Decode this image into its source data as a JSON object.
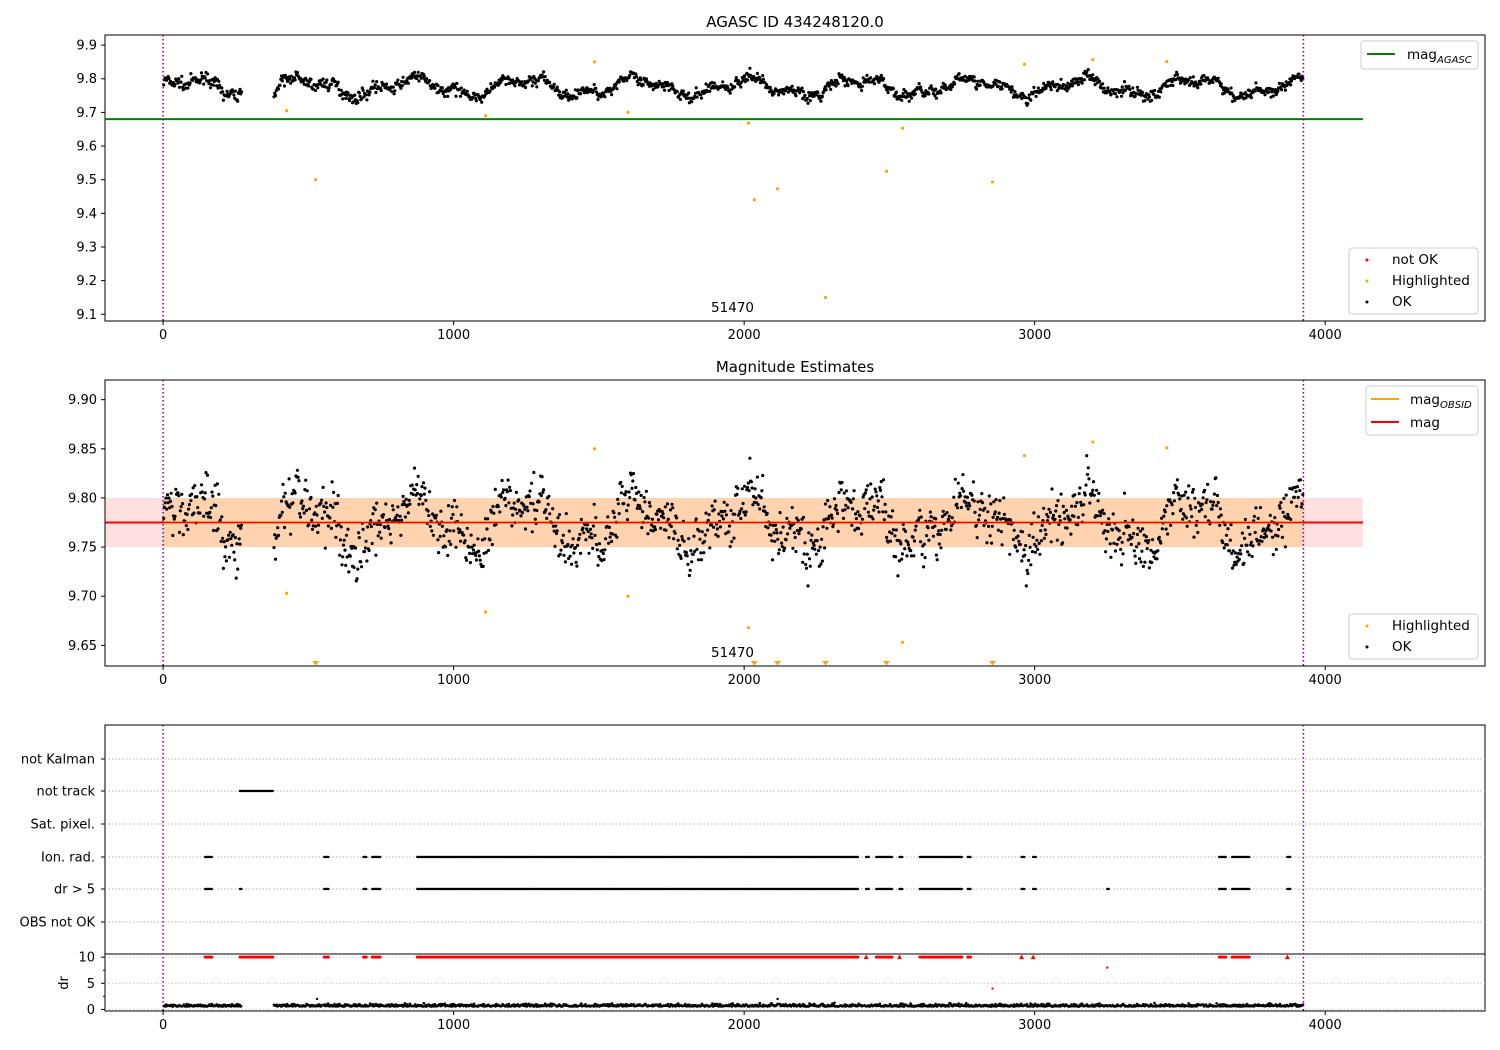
{
  "figure": {
    "title": "AGASC ID 434248120.0",
    "xlim": [
      -200,
      4550
    ],
    "x_ticks": [
      0,
      1000,
      2000,
      3000,
      4000
    ],
    "x_tick_labels": [
      "0",
      "1000",
      "2000",
      "3000",
      "4000"
    ],
    "obs_boundaries": [
      0,
      3925
    ],
    "obs_label": "51470",
    "obs_label_x": 1960
  },
  "chart_data": [
    {
      "type": "scatter",
      "title": "AGASC ID 434248120.0",
      "xlim": [
        -200,
        4550
      ],
      "ylim": [
        9.08,
        9.93
      ],
      "y_ticks": [
        9.1,
        9.2,
        9.3,
        9.4,
        9.5,
        9.6,
        9.7,
        9.8,
        9.9
      ],
      "y_tick_labels": [
        "9.1",
        "9.2",
        "9.3",
        "9.4",
        "9.5",
        "9.6",
        "9.7",
        "9.8",
        "9.9"
      ],
      "mag_agasc": 9.68,
      "mag_agasc_xrange": [
        -200,
        4130
      ],
      "legend_position": "upper right / lower right",
      "legend_line": [
        {
          "label": "mag",
          "sub": "AGASC",
          "color": "#008000"
        }
      ],
      "legend_points": [
        {
          "label": "not OK",
          "color": "#ff0000"
        },
        {
          "label": "Highlighted",
          "color": "#ffa500"
        },
        {
          "label": "OK",
          "color": "#000000"
        }
      ],
      "ok_points_description": "dense band of OK points, mag ~9.72–9.84 over x 0–3925, gap 270–380",
      "highlighted_points": [
        {
          "x": 425,
          "y": 9.705
        },
        {
          "x": 525,
          "y": 9.5
        },
        {
          "x": 1110,
          "y": 9.69
        },
        {
          "x": 1485,
          "y": 9.85
        },
        {
          "x": 1600,
          "y": 9.7
        },
        {
          "x": 2015,
          "y": 9.668
        },
        {
          "x": 2035,
          "y": 9.44
        },
        {
          "x": 2115,
          "y": 9.473
        },
        {
          "x": 2280,
          "y": 9.15
        },
        {
          "x": 2490,
          "y": 9.525
        },
        {
          "x": 2545,
          "y": 9.653
        },
        {
          "x": 2855,
          "y": 9.493
        },
        {
          "x": 2965,
          "y": 9.843
        },
        {
          "x": 3200,
          "y": 9.857
        },
        {
          "x": 3455,
          "y": 9.851
        }
      ]
    },
    {
      "type": "scatter",
      "title": "Magnitude Estimates",
      "xlim": [
        -200,
        4550
      ],
      "ylim": [
        9.629,
        9.92
      ],
      "y_ticks": [
        9.65,
        9.7,
        9.75,
        9.8,
        9.85,
        9.9
      ],
      "y_tick_labels": [
        "9.65",
        "9.70",
        "9.75",
        "9.80",
        "9.85",
        "9.90"
      ],
      "mag": 9.775,
      "mag_band": [
        9.75,
        9.8
      ],
      "mag_xrange": [
        -200,
        4130
      ],
      "mag_obsid": 9.775,
      "mag_obsid_xrange": [
        0,
        3925
      ],
      "legend_lines": [
        {
          "label": "mag",
          "sub": "OBSID",
          "color": "#ffa500"
        },
        {
          "label": "mag",
          "sub": "",
          "color": "#ff0000"
        }
      ],
      "legend_points": [
        {
          "label": "Highlighted",
          "color": "#ffa500"
        },
        {
          "label": "OK",
          "color": "#000000"
        }
      ],
      "highlighted_points": [
        {
          "x": 425,
          "y": 9.703
        },
        {
          "x": 1110,
          "y": 9.684
        },
        {
          "x": 1485,
          "y": 9.85
        },
        {
          "x": 1600,
          "y": 9.7
        },
        {
          "x": 2015,
          "y": 9.668
        },
        {
          "x": 2545,
          "y": 9.653
        },
        {
          "x": 2965,
          "y": 9.843
        },
        {
          "x": 3200,
          "y": 9.857
        },
        {
          "x": 3455,
          "y": 9.851
        }
      ],
      "offscale_low_points_x": [
        525,
        2035,
        2115,
        2280,
        2490,
        2855
      ]
    },
    {
      "type": "scatter",
      "title": "",
      "xlim": [
        -200,
        4550
      ],
      "flag_rows": [
        "not Kalman",
        "not track",
        "Sat. pixel.",
        "Ion. rad.",
        "dr > 5",
        "OBS not OK"
      ],
      "flag_segments": {
        "not Kalman": [],
        "not track": [
          [
            265,
            380
          ]
        ],
        "Sat. pixel.": [],
        "Ion. rad.": [
          [
            145,
            170
          ],
          [
            555,
            570
          ],
          [
            690,
            700
          ],
          [
            720,
            750
          ],
          [
            875,
            2395
          ],
          [
            2420,
            2430
          ],
          [
            2455,
            2510
          ],
          [
            2535,
            2545
          ],
          [
            2605,
            2750
          ],
          [
            2770,
            2780
          ],
          [
            2955,
            2965
          ],
          [
            2995,
            3005
          ],
          [
            3635,
            3660
          ],
          [
            3680,
            3740
          ],
          [
            3870,
            3880
          ]
        ],
        "dr > 5": [
          [
            145,
            170
          ],
          [
            265,
            270
          ],
          [
            555,
            570
          ],
          [
            690,
            700
          ],
          [
            720,
            750
          ],
          [
            875,
            2395
          ],
          [
            2420,
            2430
          ],
          [
            2455,
            2510
          ],
          [
            2535,
            2545
          ],
          [
            2605,
            2750
          ],
          [
            2770,
            2780
          ],
          [
            2955,
            2965
          ],
          [
            2995,
            3005
          ],
          [
            3250,
            3255
          ],
          [
            3635,
            3660
          ],
          [
            3680,
            3740
          ],
          [
            3870,
            3880
          ]
        ],
        "OBS not OK": []
      },
      "dr_ylim": [
        -0.3,
        10.6
      ],
      "dr_ticks": [
        0,
        5,
        10
      ],
      "dr_tick_labels": [
        "0",
        "5",
        "10"
      ],
      "ylabel": "dr",
      "dr_high_segments": [
        [
          145,
          170
        ],
        [
          265,
          380
        ],
        [
          555,
          570
        ],
        [
          690,
          700
        ],
        [
          720,
          750
        ],
        [
          875,
          2395
        ],
        [
          2455,
          2510
        ],
        [
          2605,
          2750
        ],
        [
          2770,
          2780
        ],
        [
          3635,
          3660
        ],
        [
          3680,
          3740
        ]
      ],
      "dr_high_singles": [
        {
          "x": 2420,
          "y": 10
        },
        {
          "x": 2535,
          "y": 10
        },
        {
          "x": 2955,
          "y": 10
        },
        {
          "x": 2995,
          "y": 10
        },
        {
          "x": 3870,
          "y": 10
        },
        {
          "x": 3250,
          "y": 8
        },
        {
          "x": 2855,
          "y": 4
        },
        {
          "x": 2115,
          "y": 2
        },
        {
          "x": 530,
          "y": 2
        }
      ],
      "dr_low_gap": [
        270,
        380
      ]
    }
  ]
}
